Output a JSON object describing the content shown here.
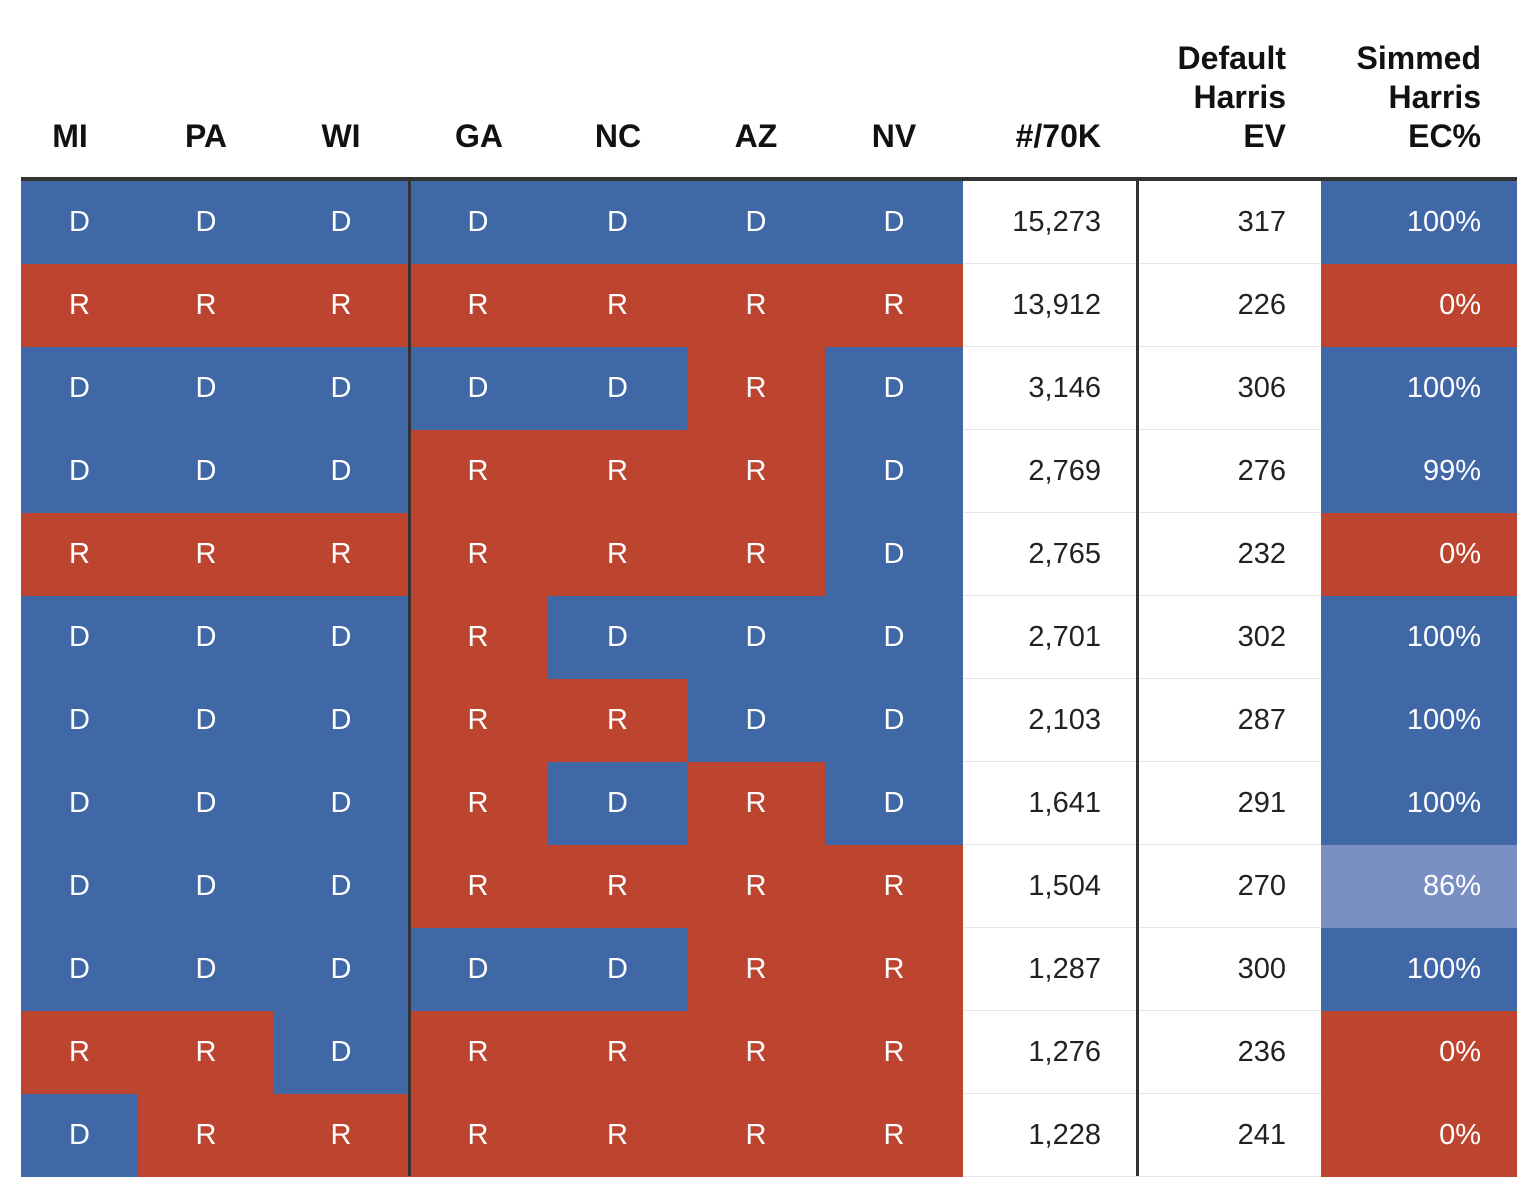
{
  "colors": {
    "D": "#4067a6",
    "R": "#bd4530",
    "D_mid": "#7a8fc2",
    "sep": "#333333"
  },
  "chart_data": {
    "type": "table",
    "columns": [
      "MI",
      "PA",
      "WI",
      "GA",
      "NC",
      "AZ",
      "NV",
      "#/70K",
      "Default\nHarris\nEV",
      "Simmed\nHarris\nEC%"
    ],
    "rows": [
      {
        "states": [
          "D",
          "D",
          "D",
          "D",
          "D",
          "D",
          "D"
        ],
        "count": "15,273",
        "ev": "317",
        "ec": "100%",
        "ec_value": 100
      },
      {
        "states": [
          "R",
          "R",
          "R",
          "R",
          "R",
          "R",
          "R"
        ],
        "count": "13,912",
        "ev": "226",
        "ec": "0%",
        "ec_value": 0
      },
      {
        "states": [
          "D",
          "D",
          "D",
          "D",
          "D",
          "R",
          "D"
        ],
        "count": "3,146",
        "ev": "306",
        "ec": "100%",
        "ec_value": 100
      },
      {
        "states": [
          "D",
          "D",
          "D",
          "R",
          "R",
          "R",
          "D"
        ],
        "count": "2,769",
        "ev": "276",
        "ec": "99%",
        "ec_value": 99
      },
      {
        "states": [
          "R",
          "R",
          "R",
          "R",
          "R",
          "R",
          "D"
        ],
        "count": "2,765",
        "ev": "232",
        "ec": "0%",
        "ec_value": 0
      },
      {
        "states": [
          "D",
          "D",
          "D",
          "R",
          "D",
          "D",
          "D"
        ],
        "count": "2,701",
        "ev": "302",
        "ec": "100%",
        "ec_value": 100
      },
      {
        "states": [
          "D",
          "D",
          "D",
          "R",
          "R",
          "D",
          "D"
        ],
        "count": "2,103",
        "ev": "287",
        "ec": "100%",
        "ec_value": 100
      },
      {
        "states": [
          "D",
          "D",
          "D",
          "R",
          "D",
          "R",
          "D"
        ],
        "count": "1,641",
        "ev": "291",
        "ec": "100%",
        "ec_value": 100
      },
      {
        "states": [
          "D",
          "D",
          "D",
          "R",
          "R",
          "R",
          "R"
        ],
        "count": "1,504",
        "ev": "270",
        "ec": "86%",
        "ec_value": 86
      },
      {
        "states": [
          "D",
          "D",
          "D",
          "D",
          "D",
          "R",
          "R"
        ],
        "count": "1,287",
        "ev": "300",
        "ec": "100%",
        "ec_value": 100
      },
      {
        "states": [
          "R",
          "R",
          "D",
          "R",
          "R",
          "R",
          "R"
        ],
        "count": "1,276",
        "ev": "236",
        "ec": "0%",
        "ec_value": 0
      },
      {
        "states": [
          "D",
          "R",
          "R",
          "R",
          "R",
          "R",
          "R"
        ],
        "count": "1,228",
        "ev": "241",
        "ec": "0%",
        "ec_value": 0
      }
    ]
  }
}
